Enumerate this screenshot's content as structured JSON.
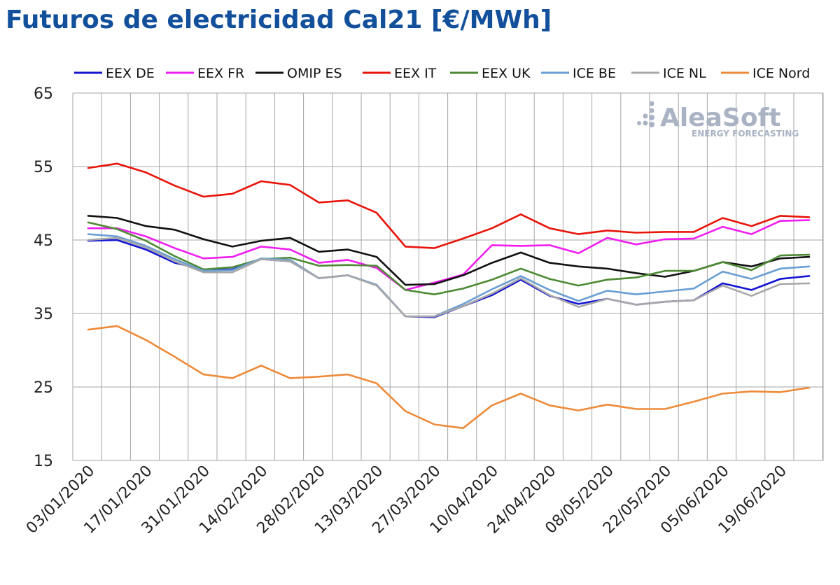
{
  "chart_data": {
    "type": "line",
    "title": "Futuros de electricidad Cal21 [€/MWh]",
    "xlabel": "",
    "ylabel": "",
    "ylim": [
      15,
      65
    ],
    "yticks": [
      "65",
      "55",
      "45",
      "35",
      "25",
      "15"
    ],
    "xtick_labels": [
      "03/01/2020",
      "17/01/2020",
      "31/01/2020",
      "14/02/2020",
      "28/02/2020",
      "13/03/2020",
      "27/03/2020",
      "10/04/2020",
      "24/04/2020",
      "08/05/2020",
      "22/05/2020",
      "05/06/2020",
      "19/06/2020"
    ],
    "grid": true,
    "legend_position": "top",
    "x": [
      "03/01/2020",
      "10/01/2020",
      "17/01/2020",
      "24/01/2020",
      "31/01/2020",
      "07/02/2020",
      "14/02/2020",
      "21/02/2020",
      "28/02/2020",
      "06/03/2020",
      "13/03/2020",
      "20/03/2020",
      "27/03/2020",
      "03/04/2020",
      "10/04/2020",
      "17/04/2020",
      "24/04/2020",
      "01/05/2020",
      "08/05/2020",
      "15/05/2020",
      "22/05/2020",
      "29/05/2020",
      "05/06/2020",
      "12/06/2020",
      "19/06/2020",
      "26/06/2020"
    ],
    "series": [
      {
        "name": "EEX DE",
        "color": "#1414d2",
        "values": [
          44.9,
          45.0,
          43.7,
          41.9,
          41.0,
          41.0,
          42.4,
          42.1,
          39.8,
          40.2,
          38.9,
          34.6,
          34.5,
          36.0,
          37.5,
          39.6,
          37.4,
          36.3,
          37.0,
          36.2,
          36.6,
          36.8,
          39.1,
          38.2,
          39.7,
          40.1
        ]
      },
      {
        "name": "EEX FR",
        "color": "#f01ef0",
        "values": [
          46.6,
          46.6,
          45.5,
          43.9,
          42.5,
          42.7,
          44.1,
          43.7,
          41.9,
          42.3,
          41.2,
          38.2,
          39.2,
          40.3,
          44.3,
          44.2,
          44.3,
          43.2,
          45.3,
          44.4,
          45.1,
          45.2,
          46.8,
          45.8,
          47.6,
          47.7
        ]
      },
      {
        "name": "OMIP ES",
        "color": "#111111",
        "values": [
          48.3,
          48.0,
          46.9,
          46.4,
          45.1,
          44.1,
          44.9,
          45.3,
          43.4,
          43.7,
          42.7,
          38.9,
          39.0,
          40.2,
          41.9,
          43.3,
          41.9,
          41.4,
          41.1,
          40.5,
          40.0,
          40.8,
          42.0,
          41.4,
          42.5,
          42.7
        ]
      },
      {
        "name": "EEX IT",
        "color": "#e8140a",
        "values": [
          54.8,
          55.4,
          54.2,
          52.4,
          50.9,
          51.3,
          53.0,
          52.5,
          50.1,
          50.4,
          48.7,
          44.1,
          43.9,
          45.2,
          46.6,
          48.5,
          46.6,
          45.8,
          46.3,
          46.0,
          46.1,
          46.1,
          48.0,
          46.9,
          48.3,
          48.1
        ]
      },
      {
        "name": "EEX UK",
        "color": "#4e8a34",
        "values": [
          47.4,
          46.5,
          44.9,
          42.8,
          41.0,
          41.3,
          42.4,
          42.6,
          41.5,
          41.6,
          41.5,
          38.2,
          37.6,
          38.4,
          39.6,
          41.1,
          39.7,
          38.8,
          39.6,
          39.9,
          40.8,
          40.8,
          42.0,
          40.9,
          42.9,
          43.0
        ]
      },
      {
        "name": "ICE BE",
        "color": "#6a9fd4",
        "values": [
          45.8,
          45.5,
          44.2,
          42.4,
          40.8,
          40.9,
          42.5,
          42.3,
          39.8,
          40.2,
          38.9,
          34.6,
          34.6,
          36.3,
          38.3,
          40.1,
          38.2,
          36.7,
          38.1,
          37.6,
          38.0,
          38.4,
          40.7,
          39.7,
          41.1,
          41.4
        ]
      },
      {
        "name": "ICE NL",
        "color": "#a8a8a8",
        "values": [
          45.0,
          45.3,
          44.0,
          42.1,
          40.6,
          40.6,
          42.4,
          42.1,
          39.8,
          40.2,
          38.8,
          34.6,
          34.6,
          36.0,
          37.7,
          39.8,
          37.5,
          35.9,
          37.0,
          36.2,
          36.6,
          36.8,
          38.8,
          37.4,
          39.0,
          39.1
        ]
      },
      {
        "name": "ICE Nord",
        "color": "#ed8b3a",
        "values": [
          32.8,
          33.3,
          31.4,
          29.1,
          26.7,
          26.2,
          27.9,
          26.2,
          26.4,
          26.7,
          25.5,
          21.7,
          19.9,
          19.4,
          22.5,
          24.1,
          22.5,
          21.8,
          22.6,
          22.0,
          22.0,
          23.0,
          24.1,
          24.4,
          24.3,
          24.9
        ]
      }
    ]
  },
  "logo": {
    "name": "AleaSoft",
    "tagline": "ENERGY FORECASTING"
  }
}
